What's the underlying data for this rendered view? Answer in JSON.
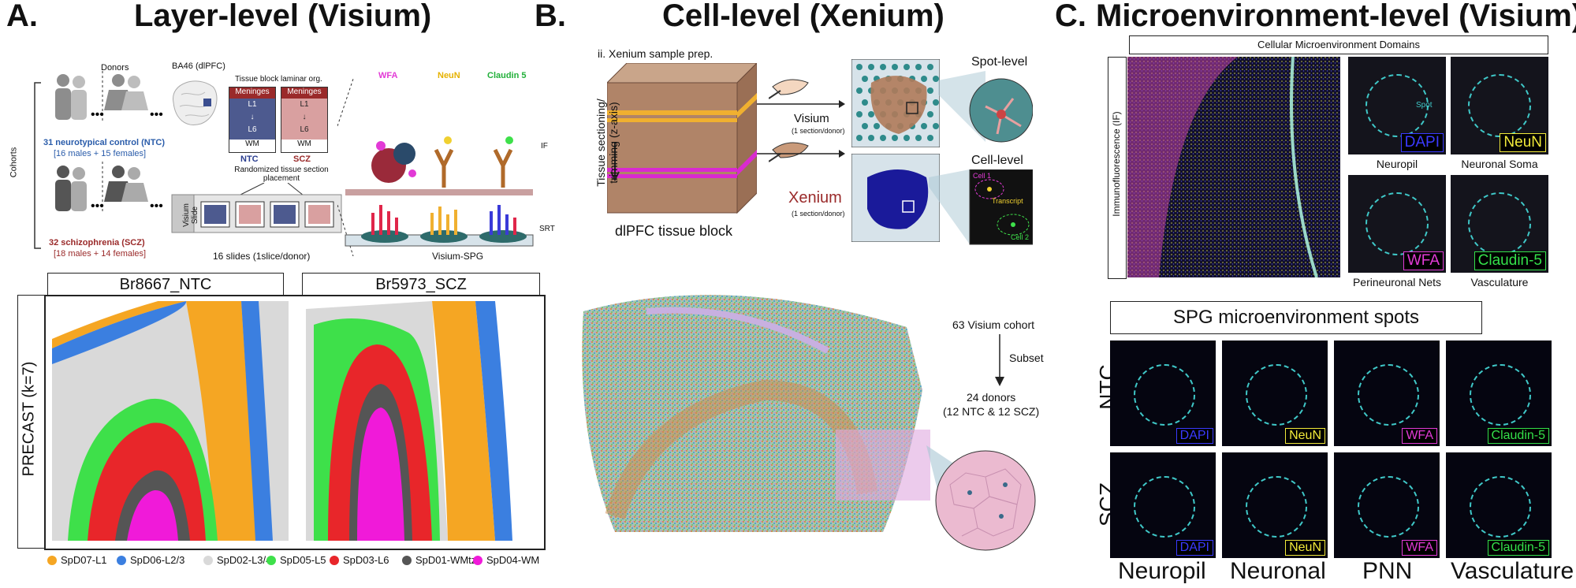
{
  "panel_a": {
    "title": "Layer-level (Visium)",
    "letter": "A.",
    "donors_label": "Donors",
    "cohorts_label": "Cohorts",
    "ntc_line1": "31 neurotypical control (NTC)",
    "ntc_line2": "[16 males + 15 females]",
    "scz_line1": "32 schizophrenia (SCZ)",
    "scz_line2": "[18 males + 14 females]",
    "ba46": "BA46 (dlPFC)",
    "tissue_block": "Tissue block laminar org.",
    "meninges": "Meninges",
    "l1": "L1",
    "l6": "L6",
    "wm": "WM",
    "ntc": "NTC",
    "scz": "SCZ",
    "randomized": "Randomized tissue section placement",
    "visium_slide": "Visium Slide",
    "slides_16": "16 slides (1slice/donor)",
    "wfa": "WFA",
    "neun": "NeuN",
    "claudin": "Claudin 5",
    "if": "IF",
    "srt": "SRT",
    "visium_spg": "Visium-SPG",
    "sample1": "Br8667_NTC",
    "sample2": "Br5973_SCZ",
    "precast": "PRECAST (k=7)",
    "legend": [
      {
        "label": "SpD07-L1",
        "color": "#f5a623"
      },
      {
        "label": "SpD06-L2/3",
        "color": "#3b7fe0"
      },
      {
        "label": "SpD02-L3/4",
        "color": "#d9d9d9"
      },
      {
        "label": "SpD05-L5",
        "color": "#3ee04a"
      },
      {
        "label": "SpD03-L6",
        "color": "#e8262a"
      },
      {
        "label": "SpD01-WMtz",
        "color": "#555555"
      },
      {
        "label": "SpD04-WM",
        "color": "#f01ad9"
      }
    ]
  },
  "panel_b": {
    "title": "Cell-level (Xenium)",
    "letter": "B.",
    "prep": "ii. Xenium sample prep.",
    "sectioning": "Tissue sectioning/ trimming (z-axis)",
    "block": "dlPFC tissue block",
    "visium": "Visium",
    "visium_sub": "(1 section/donor)",
    "xenium": "Xenium",
    "xenium_sub": "(1 section/donor)",
    "spot_level": "Spot-level",
    "cell_level": "Cell-level",
    "cell1": "Cell 1",
    "cell2": "Cell 2",
    "transcript": "Transcript",
    "cohort63": "63 Visium cohort",
    "subset": "Subset",
    "donors24": "24 donors",
    "donors24_sub": "(12 NTC & 12 SCZ)"
  },
  "panel_c": {
    "title": "Microenvironment-level (Visium)",
    "letter": "C.",
    "domains": "Cellular Microenvironment Domains",
    "if_label": "Immunofluorescence (IF)",
    "spot": "Spot",
    "tiles": [
      {
        "label": "DAPI",
        "caption": "Neuropil",
        "color": "#3a3aff"
      },
      {
        "label": "NeuN",
        "caption": "Neuronal Soma",
        "color": "#f2ea3a"
      },
      {
        "label": "WFA",
        "caption": "Perineuronal Nets",
        "color": "#e23ad6"
      },
      {
        "label": "Claudin-5",
        "caption": "Vasculature",
        "color": "#34e04a"
      }
    ],
    "spg_title": "SPG microenvironment spots",
    "row_ntc": "NTC",
    "row_scz": "SCZ",
    "bottom": [
      "Neuropil",
      "Neuronal",
      "PNN",
      "Vasculature"
    ]
  }
}
